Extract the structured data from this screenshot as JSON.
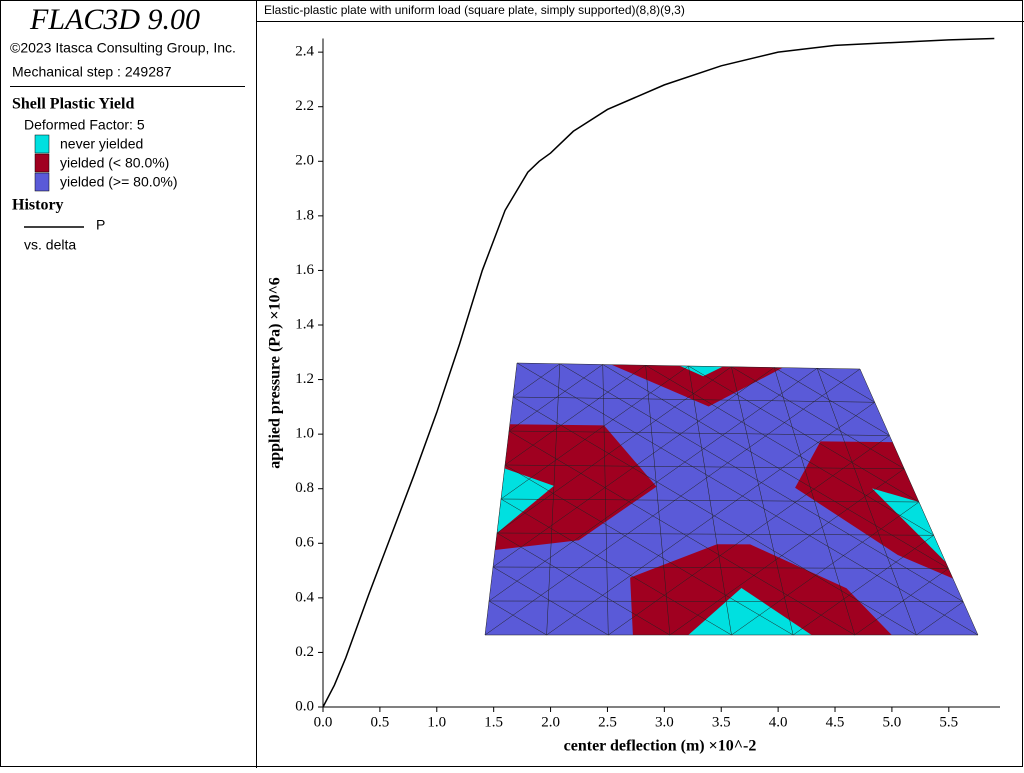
{
  "sidebar": {
    "app_title": "FLAC3D 9.00",
    "copyright": "©2023 Itasca Consulting Group, Inc.",
    "step": "Mechanical step : 249287",
    "plot_title": "Shell Plastic Yield",
    "deformed": "Deformed Factor: 5",
    "legend": [
      {
        "label": "never yielded",
        "color": "#00e0e0"
      },
      {
        "label": "yielded (< 80.0%)",
        "color": "#a00020"
      },
      {
        "label": "yielded (>= 80.0%)",
        "color": "#5a5ad8"
      }
    ],
    "history_title": "History",
    "history_vs": "vs. delta"
  },
  "chart_data": {
    "type": "line",
    "title": "Elastic-plastic plate with uniform load (square plate, simply supported)(8,8)(9,3)",
    "x_label": "center deflection (m) ×10^-2",
    "y_label": "applied pressure (Pa) ×10^6",
    "x": [
      0,
      0.1,
      0.2,
      0.4,
      0.6,
      0.8,
      1.0,
      1.2,
      1.4,
      1.6,
      1.8,
      1.9,
      2.0,
      2.2,
      2.5,
      3.0,
      3.5,
      4.0,
      4.5,
      5.0,
      5.5,
      5.9
    ],
    "series": [
      {
        "name": "P",
        "color": "#000000",
        "values": [
          0,
          0.08,
          0.18,
          0.41,
          0.63,
          0.85,
          1.08,
          1.33,
          1.6,
          1.82,
          1.96,
          2.0,
          2.03,
          2.11,
          2.19,
          2.28,
          2.35,
          2.4,
          2.425,
          2.435,
          2.445,
          2.45
        ]
      }
    ],
    "xlim": [
      0,
      5.95
    ],
    "ylim": [
      0,
      2.45
    ],
    "xticks": [
      {
        "value": 0,
        "label": "0.0"
      },
      0.5,
      {
        "value": 1,
        "label": "1.0"
      },
      1.5,
      {
        "value": 2,
        "label": "2.0"
      },
      2.5,
      {
        "value": 3,
        "label": "3.0"
      },
      3.5,
      {
        "value": 4,
        "label": "4.0"
      },
      4.5,
      {
        "value": 5,
        "label": "5.0"
      },
      5.5
    ],
    "yticks": [
      {
        "value": 0,
        "label": "0.0"
      },
      0.2,
      0.4,
      0.6,
      0.8,
      {
        "value": 1,
        "label": "1.0"
      },
      1.2,
      1.4,
      1.6,
      1.8,
      {
        "value": 2,
        "label": "2.0"
      },
      2.2,
      2.4
    ]
  }
}
